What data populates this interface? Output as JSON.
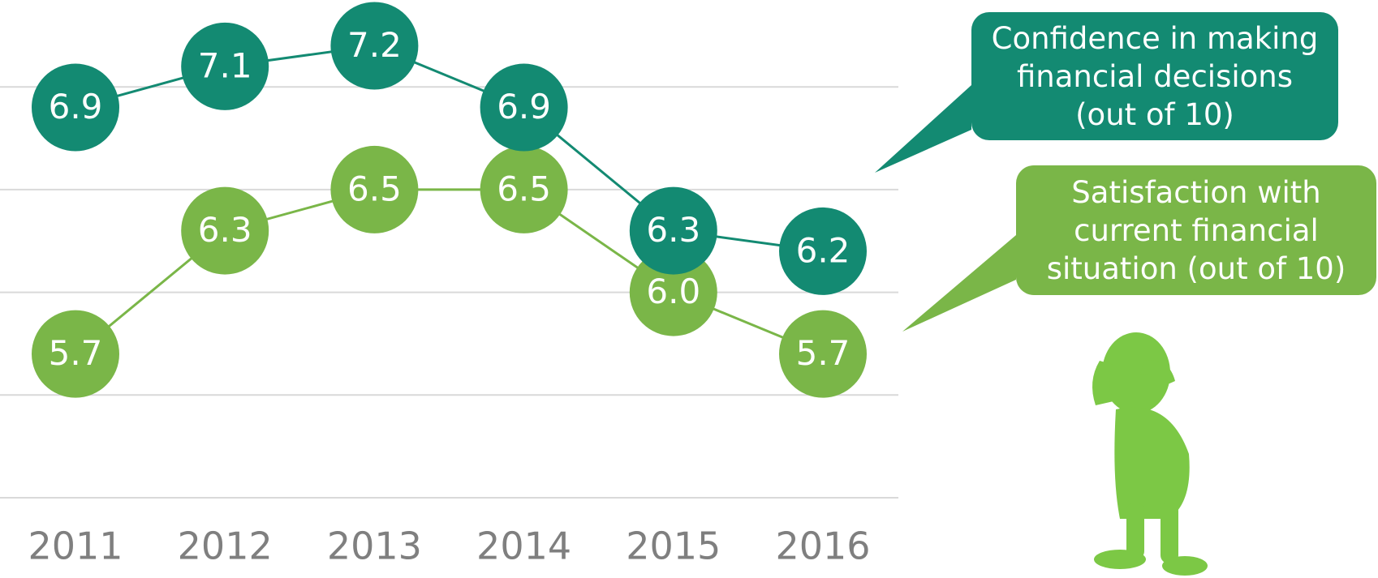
{
  "chart_data": {
    "type": "line",
    "x": [
      "2011",
      "2012",
      "2013",
      "2014",
      "2015",
      "2016"
    ],
    "series": [
      {
        "name": "Confidence in making financial decisions (out of 10)",
        "color": "#138a72",
        "values": [
          6.9,
          7.1,
          7.2,
          6.9,
          6.3,
          6.2
        ]
      },
      {
        "name": "Satisfaction with current financial situation (out of 10)",
        "color": "#7ab648",
        "values": [
          5.7,
          6.3,
          6.5,
          6.5,
          6.0,
          5.7
        ],
        "value_labels": [
          "5.7",
          "6.3",
          "6.5",
          "6.5",
          "6.0",
          "5.7"
        ]
      }
    ],
    "ylim": [
      5.0,
      7.5
    ],
    "yticks": [
      5.0,
      5.5,
      6.0,
      6.5,
      7.0
    ],
    "grid": true
  }
}
